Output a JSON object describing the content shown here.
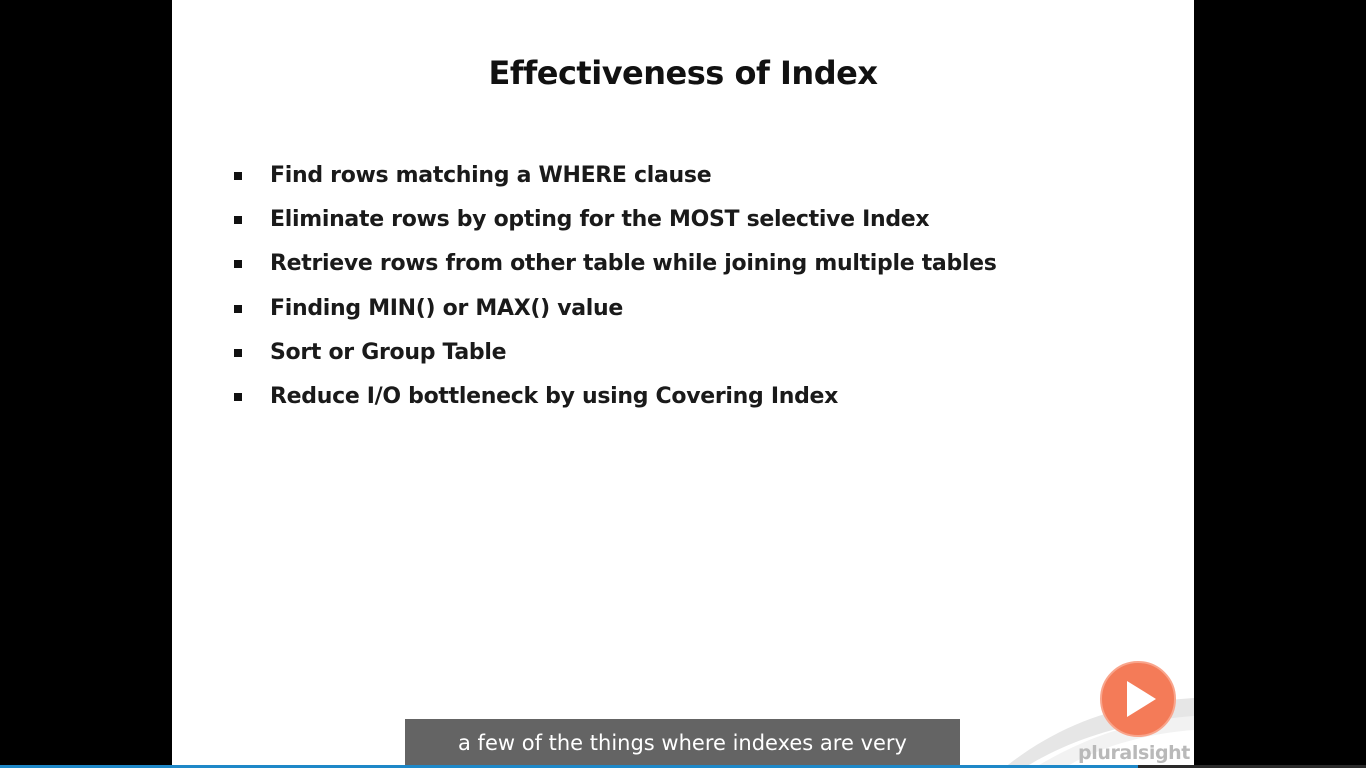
{
  "slide": {
    "title": "Effectiveness of Index",
    "bullets": [
      "Find rows matching a WHERE clause",
      "Eliminate rows by opting for the MOST selective Index",
      "Retrieve rows from other table while joining multiple tables",
      "Finding MIN() or MAX() value",
      "Sort or Group Table",
      "Reduce I/O bottleneck by using Covering Index"
    ]
  },
  "logo": {
    "text": "pluralsight",
    "icon": "play-icon",
    "color": "#f47b58"
  },
  "caption": {
    "text": "a few of the things where indexes are very"
  },
  "progress": {
    "fraction": 0.833,
    "color": "#1e88c8"
  }
}
